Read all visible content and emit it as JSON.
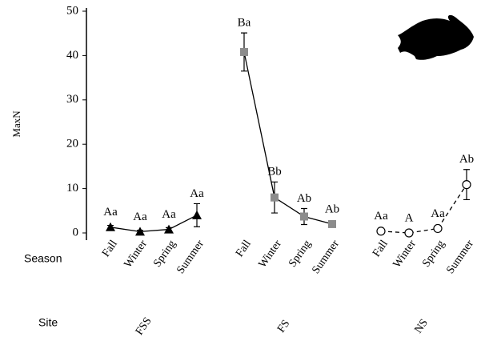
{
  "chart_data": {
    "type": "line",
    "ylabel": "MaxN",
    "season_label": "Season",
    "site_label": "Site",
    "ylim": [
      0,
      50
    ],
    "yticks": [
      0,
      10,
      20,
      30,
      40,
      50
    ],
    "categories": [
      "Fall",
      "Winter",
      "Spring",
      "Summer"
    ],
    "series": [
      {
        "name": "FSS",
        "color": "#000000",
        "marker": "triangle",
        "dashed": false,
        "values": [
          1.3,
          0.3,
          0.8,
          4.0
        ],
        "errors": [
          0.4,
          0.3,
          0.4,
          2.6
        ],
        "letters": [
          "Aa",
          "Aa",
          "Aa",
          "Aa"
        ]
      },
      {
        "name": "FS",
        "color": "#8c8c8c",
        "marker": "square",
        "dashed": false,
        "values": [
          40.8,
          8.0,
          3.7,
          2.0
        ],
        "errors": [
          4.3,
          3.5,
          1.8,
          0.3
        ],
        "letters": [
          "Ba",
          "Bb",
          "Ab",
          "Ab"
        ]
      },
      {
        "name": "NS",
        "color": "#ffffff",
        "marker": "circle",
        "dashed": true,
        "values": [
          0.4,
          0.0,
          1.0,
          10.9
        ],
        "errors": [
          0.4,
          0.3,
          0.4,
          3.4
        ],
        "letters": [
          "Aa",
          "A",
          "Aa",
          "Ab"
        ]
      }
    ]
  }
}
